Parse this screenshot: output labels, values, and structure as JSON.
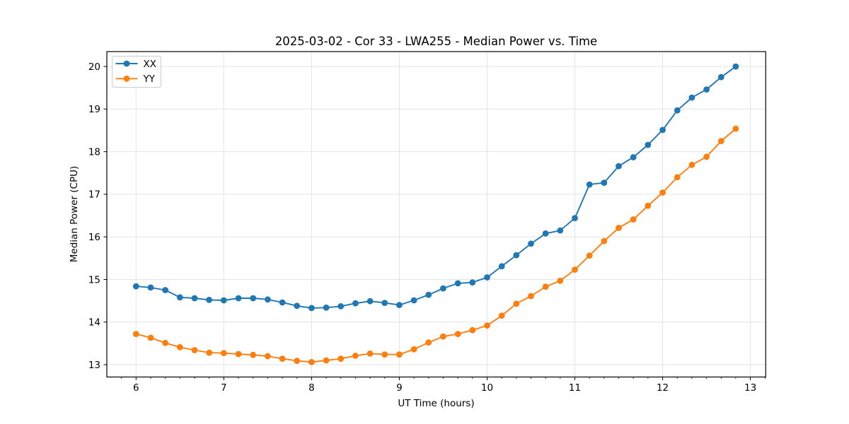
{
  "window": {
    "kind": "matplotlib-style-figure"
  },
  "chart_data": {
    "type": "line",
    "title": "2025-03-02 - Cor 33 - LWA255 - Median Power vs. Time",
    "xlabel": "UT Time (hours)",
    "ylabel": "Median Power (CPU)",
    "xlim": [
      5.667,
      13.175
    ],
    "ylim": [
      12.71,
      20.35
    ],
    "x_ticks": [
      6,
      7,
      8,
      9,
      10,
      11,
      12,
      13
    ],
    "y_ticks": [
      13,
      14,
      15,
      16,
      17,
      18,
      19,
      20
    ],
    "x_minor_step_hours": 0.16667,
    "grid": true,
    "legend_position": "upper-left",
    "x": [
      6.0,
      6.167,
      6.333,
      6.5,
      6.667,
      6.833,
      7.0,
      7.167,
      7.333,
      7.5,
      7.667,
      7.833,
      8.0,
      8.167,
      8.333,
      8.5,
      8.667,
      8.833,
      9.0,
      9.167,
      9.333,
      9.5,
      9.667,
      9.833,
      10.0,
      10.167,
      10.333,
      10.5,
      10.667,
      10.833,
      11.0,
      11.167,
      11.333,
      11.5,
      11.667,
      11.833,
      12.0,
      12.167,
      12.333,
      12.5,
      12.667,
      12.833
    ],
    "series": [
      {
        "name": "XX",
        "color": "#1f77b4",
        "values": [
          14.84,
          14.81,
          14.75,
          14.58,
          14.56,
          14.52,
          14.51,
          14.56,
          14.56,
          14.53,
          14.46,
          14.38,
          14.33,
          14.34,
          14.37,
          14.44,
          14.49,
          14.45,
          14.4,
          14.51,
          14.64,
          14.79,
          14.91,
          14.93,
          15.05,
          15.31,
          15.57,
          15.84,
          16.08,
          16.15,
          16.44,
          17.23,
          17.27,
          17.66,
          17.87,
          18.16,
          18.51,
          18.97,
          19.27,
          19.46,
          19.75,
          20.0
        ]
      },
      {
        "name": "YY",
        "color": "#ff7f0e",
        "values": [
          13.72,
          13.63,
          13.51,
          13.41,
          13.34,
          13.28,
          13.27,
          13.25,
          13.23,
          13.2,
          13.14,
          13.09,
          13.06,
          13.1,
          13.14,
          13.21,
          13.26,
          13.24,
          13.24,
          13.36,
          13.52,
          13.66,
          13.72,
          13.81,
          13.92,
          14.15,
          14.43,
          14.61,
          14.83,
          14.97,
          15.23,
          15.56,
          15.9,
          16.21,
          16.41,
          16.73,
          17.04,
          17.4,
          17.69,
          17.88,
          18.25,
          18.54
        ]
      }
    ],
    "style_colors": {
      "grid": "#e4e4e4",
      "spine": "#000000",
      "legend_border": "#cccccc",
      "background": "#ffffff"
    }
  }
}
